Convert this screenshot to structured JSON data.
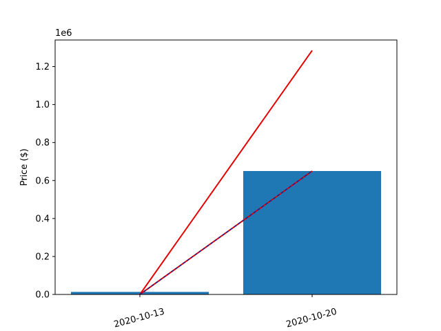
{
  "chart_data": {
    "type": "bar",
    "categories": [
      "2020-10-13",
      "2020-10-20"
    ],
    "values": [
      13500,
      650000
    ],
    "bar_color": "#1f77b4",
    "ylabel": "Price ($)",
    "xlabel": "",
    "ylim": [
      0,
      1340000
    ],
    "y_ticks": [
      0,
      200000,
      400000,
      600000,
      800000,
      1000000,
      1200000
    ],
    "y_tick_labels": [
      "0.0",
      "0.2",
      "0.4",
      "0.6",
      "0.8",
      "1.0",
      "1.2"
    ],
    "y_offset_label": "1e6",
    "lines": [
      {
        "color": "#e60000",
        "points": [
          [
            "2020-10-13",
            0
          ],
          [
            "2020-10-20",
            1285000
          ]
        ]
      },
      {
        "color": "#e60000",
        "points": [
          [
            "2020-10-13",
            0
          ],
          [
            "2020-10-20",
            650000
          ]
        ]
      },
      {
        "color": "#1f1f8f",
        "points": [
          [
            "2020-10-13",
            0
          ],
          [
            "2020-10-20",
            650000
          ]
        ],
        "style": "dashed"
      }
    ],
    "grid": false
  }
}
